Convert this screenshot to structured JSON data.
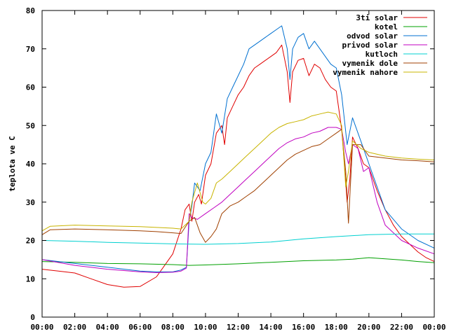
{
  "chart_data": {
    "type": "line",
    "title": "",
    "xlabel": "",
    "ylabel": "teplota ve C",
    "ylim": [
      0,
      80
    ],
    "xlim": [
      "00:00",
      "24:00"
    ],
    "grid": false,
    "legend": "top-right",
    "x_ticks": [
      "00:00",
      "02:00",
      "04:00",
      "06:00",
      "08:00",
      "10:00",
      "12:00",
      "14:00",
      "16:00",
      "18:00",
      "20:00",
      "22:00",
      "00:00"
    ],
    "y_ticks": [
      0,
      10,
      20,
      30,
      40,
      50,
      60,
      70,
      80
    ],
    "series": [
      {
        "name": "3ti solar",
        "color": "#e00000",
        "x": [
          "00:00",
          "01:00",
          "02:00",
          "03:00",
          "04:00",
          "05:00",
          "06:00",
          "07:00",
          "07:30",
          "08:00",
          "08:30",
          "08:45",
          "09:00",
          "09:10",
          "09:20",
          "09:35",
          "09:45",
          "10:00",
          "10:20",
          "10:40",
          "11:00",
          "11:10",
          "11:20",
          "11:40",
          "12:00",
          "12:20",
          "12:40",
          "13:00",
          "13:20",
          "13:40",
          "14:00",
          "14:20",
          "14:40",
          "15:00",
          "15:10",
          "15:20",
          "15:40",
          "16:00",
          "16:20",
          "16:40",
          "17:00",
          "17:20",
          "17:40",
          "18:00",
          "18:20",
          "18:30",
          "18:40",
          "18:50",
          "19:00",
          "19:20",
          "19:40",
          "20:00",
          "20:30",
          "21:00",
          "21:30",
          "22:00",
          "22:30",
          "23:00",
          "23:30",
          "24:00"
        ],
        "y": [
          12.5,
          12.0,
          11.5,
          10.0,
          8.5,
          7.8,
          8.0,
          10.5,
          13.5,
          16.5,
          23.0,
          28.0,
          29.5,
          25.0,
          30.0,
          32.0,
          29.5,
          37.0,
          40.0,
          48.0,
          50.0,
          45.0,
          52.0,
          55.0,
          58.0,
          60.0,
          63.0,
          65.0,
          66.0,
          67.0,
          68.0,
          69.0,
          71.0,
          64.0,
          56.0,
          64.0,
          67.0,
          67.5,
          63.0,
          66.0,
          65.0,
          62.0,
          60.0,
          59.0,
          49.0,
          40.0,
          30.0,
          36.0,
          47.0,
          44.0,
          40.0,
          39.0,
          33.0,
          28.0,
          24.0,
          21.0,
          19.0,
          17.0,
          15.5,
          14.5
        ]
      },
      {
        "name": "kotel",
        "color": "#00a000",
        "x": [
          "00:00",
          "02:00",
          "04:00",
          "06:00",
          "08:00",
          "09:00",
          "10:00",
          "12:00",
          "14:00",
          "16:00",
          "18:00",
          "19:00",
          "20:00",
          "21:00",
          "22:00",
          "23:00",
          "24:00"
        ],
        "y": [
          14.5,
          14.3,
          14.0,
          13.9,
          13.7,
          13.5,
          13.6,
          13.9,
          14.3,
          14.7,
          14.9,
          15.1,
          15.5,
          15.2,
          14.9,
          14.5,
          14.2
        ]
      },
      {
        "name": "odvod solar",
        "color": "#0070d0",
        "x": [
          "00:00",
          "02:00",
          "04:00",
          "06:00",
          "07:00",
          "08:00",
          "08:30",
          "08:50",
          "09:00",
          "09:10",
          "09:20",
          "09:40",
          "10:00",
          "10:20",
          "10:40",
          "11:00",
          "11:20",
          "11:40",
          "12:00",
          "12:20",
          "12:40",
          "13:00",
          "13:20",
          "13:40",
          "14:00",
          "14:20",
          "14:40",
          "15:00",
          "15:10",
          "15:20",
          "15:40",
          "16:00",
          "16:20",
          "16:40",
          "17:00",
          "17:20",
          "17:40",
          "18:00",
          "18:20",
          "18:40",
          "19:00",
          "19:20",
          "19:40",
          "20:00",
          "20:30",
          "21:00",
          "22:00",
          "23:00",
          "24:00"
        ],
        "y": [
          15.0,
          14.0,
          13.0,
          12.0,
          11.8,
          11.8,
          12.3,
          13.0,
          25.0,
          29.0,
          35.0,
          33.0,
          40.0,
          43.0,
          53.0,
          48.0,
          57.0,
          60.0,
          63.0,
          66.0,
          70.0,
          71.0,
          72.0,
          73.0,
          74.0,
          75.0,
          76.0,
          70.0,
          62.0,
          70.0,
          73.0,
          74.0,
          70.0,
          72.0,
          70.0,
          68.0,
          66.0,
          65.0,
          58.0,
          45.0,
          52.0,
          48.0,
          44.0,
          40.0,
          34.0,
          28.0,
          23.0,
          20.0,
          18.0
        ]
      },
      {
        "name": "privod solar",
        "color": "#c000c0",
        "x": [
          "00:00",
          "02:00",
          "04:00",
          "06:00",
          "07:00",
          "08:00",
          "08:30",
          "08:50",
          "09:00",
          "09:10",
          "09:30",
          "10:00",
          "10:30",
          "11:00",
          "11:30",
          "12:00",
          "12:30",
          "13:00",
          "13:30",
          "14:00",
          "14:30",
          "15:00",
          "15:30",
          "16:00",
          "16:30",
          "17:00",
          "17:30",
          "18:00",
          "18:20",
          "18:35",
          "18:45",
          "19:00",
          "19:20",
          "19:40",
          "20:00",
          "20:30",
          "21:00",
          "22:00",
          "23:00",
          "24:00"
        ],
        "y": [
          15.0,
          13.5,
          12.5,
          11.8,
          11.6,
          11.7,
          12.0,
          12.8,
          27.0,
          26.0,
          25.5,
          27.0,
          28.5,
          30.0,
          32.0,
          34.0,
          36.0,
          38.0,
          40.0,
          42.0,
          44.0,
          45.5,
          46.5,
          47.0,
          48.0,
          48.5,
          49.5,
          49.5,
          49.0,
          43.0,
          40.0,
          45.0,
          44.0,
          38.0,
          39.0,
          30.0,
          24.0,
          20.0,
          18.0,
          16.5
        ]
      },
      {
        "name": "kutloch",
        "color": "#00d0d0",
        "x": [
          "00:00",
          "02:00",
          "04:00",
          "06:00",
          "08:00",
          "10:00",
          "12:00",
          "14:00",
          "16:00",
          "18:00",
          "20:00",
          "22:00",
          "24:00"
        ],
        "y": [
          20.0,
          19.8,
          19.5,
          19.3,
          19.1,
          19.0,
          19.2,
          19.6,
          20.4,
          21.0,
          21.5,
          21.7,
          21.7
        ]
      },
      {
        "name": "vymenik dole",
        "color": "#a04000",
        "x": [
          "00:00",
          "00:30",
          "02:00",
          "04:00",
          "06:00",
          "07:00",
          "08:00",
          "08:30",
          "09:00",
          "09:20",
          "09:40",
          "10:00",
          "10:20",
          "10:40",
          "11:00",
          "11:30",
          "12:00",
          "12:30",
          "13:00",
          "13:30",
          "14:00",
          "14:30",
          "15:00",
          "15:30",
          "16:00",
          "16:30",
          "17:00",
          "17:30",
          "18:00",
          "18:20",
          "18:35",
          "18:45",
          "19:00",
          "19:30",
          "20:00",
          "21:00",
          "22:00",
          "23:00",
          "24:00"
        ],
        "y": [
          21.5,
          22.8,
          23.0,
          22.8,
          22.5,
          22.3,
          22.0,
          21.8,
          25.0,
          26.0,
          22.0,
          19.5,
          21.0,
          23.0,
          27.0,
          29.0,
          30.0,
          31.5,
          33.0,
          35.0,
          37.0,
          39.0,
          41.0,
          42.5,
          43.5,
          44.5,
          45.0,
          46.5,
          48.0,
          49.0,
          38.0,
          24.5,
          45.0,
          45.0,
          42.0,
          41.5,
          41.0,
          40.8,
          40.5
        ]
      },
      {
        "name": "vymenik nahore",
        "color": "#c8b400",
        "x": [
          "00:00",
          "00:30",
          "02:00",
          "04:00",
          "06:00",
          "07:00",
          "08:00",
          "08:30",
          "09:00",
          "09:10",
          "09:30",
          "09:50",
          "10:00",
          "10:20",
          "10:40",
          "11:00",
          "11:30",
          "12:00",
          "12:30",
          "13:00",
          "13:30",
          "14:00",
          "14:30",
          "15:00",
          "15:30",
          "16:00",
          "16:30",
          "17:00",
          "17:30",
          "18:00",
          "18:20",
          "18:35",
          "18:45",
          "19:00",
          "19:30",
          "20:00",
          "21:00",
          "22:00",
          "23:00",
          "24:00"
        ],
        "y": [
          22.5,
          23.7,
          24.0,
          23.8,
          23.6,
          23.4,
          23.2,
          23.0,
          25.0,
          30.0,
          35.0,
          30.0,
          29.5,
          31.0,
          35.0,
          36.0,
          38.0,
          40.0,
          42.0,
          44.0,
          46.0,
          48.0,
          49.5,
          50.5,
          51.0,
          51.5,
          52.5,
          53.0,
          53.5,
          53.0,
          50.0,
          34.0,
          38.0,
          46.0,
          44.0,
          43.0,
          42.0,
          41.5,
          41.2,
          41.0
        ]
      }
    ]
  }
}
